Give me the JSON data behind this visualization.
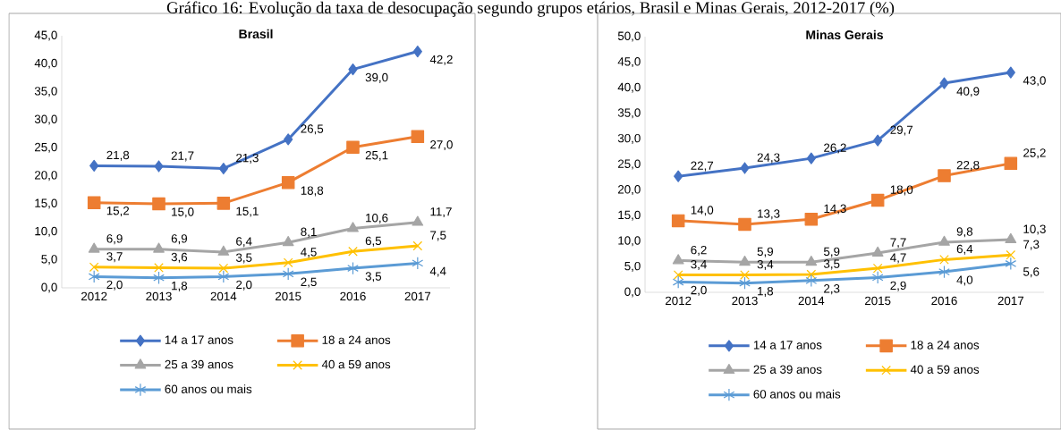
{
  "chart_data": [
    {
      "type": "line",
      "title": "Brasil",
      "annotations": [
        "Gráfico 16: Evolução da taxa de desocupação segundo grupos etários, Brasil e Minas Gerais, 2012-2017 (%)"
      ],
      "categories": [
        "2012",
        "2013",
        "2014",
        "2015",
        "2016",
        "2017"
      ],
      "ylim": [
        0,
        45
      ],
      "yticks": [
        {
          "value": 0,
          "label": "0,0"
        },
        {
          "value": 5,
          "label": "5,0"
        },
        {
          "value": 10,
          "label": "10,0"
        },
        {
          "value": 15,
          "label": "15,0"
        },
        {
          "value": 20,
          "label": "20,0"
        },
        {
          "value": 25,
          "label": "25,0"
        },
        {
          "value": 30,
          "label": "30,0"
        },
        {
          "value": 35,
          "label": "35,0"
        },
        {
          "value": 40,
          "label": "40,0"
        },
        {
          "value": 45,
          "label": "45,0"
        }
      ],
      "grid": false,
      "legend": "bottom",
      "line_style": "solid",
      "series": [
        {
          "name": "14 a 17 anos",
          "color": "#4472c4",
          "marker": "diamond",
          "values": [
            21.8,
            21.7,
            21.3,
            26.5,
            39.0,
            42.2
          ],
          "value_labels": [
            "21,8",
            "21,7",
            "21,3",
            "26,5",
            "39,0",
            "42,2"
          ]
        },
        {
          "name": "18 a 24 anos",
          "color": "#ed7d31",
          "marker": "square",
          "values": [
            15.2,
            15.0,
            15.1,
            18.8,
            25.1,
            27.0
          ],
          "value_labels": [
            "15,2",
            "15,0",
            "15,1",
            "18,8",
            "25,1",
            "27,0"
          ]
        },
        {
          "name": "25 a 39 anos",
          "color": "#a5a5a5",
          "marker": "triangle",
          "values": [
            6.9,
            6.9,
            6.4,
            8.1,
            10.6,
            11.7
          ],
          "value_labels": [
            "6,9",
            "6,9",
            "6,4",
            "8,1",
            "10,6",
            "11,7"
          ]
        },
        {
          "name": "40 a 59 anos",
          "color": "#ffc000",
          "marker": "cross",
          "values": [
            3.7,
            3.6,
            3.5,
            4.5,
            6.5,
            7.5
          ],
          "value_labels": [
            "3,7",
            "3,6",
            "3,5",
            "4,5",
            "6,5",
            "7,5"
          ]
        },
        {
          "name": "60 anos ou mais",
          "color": "#5b9bd5",
          "marker": "cross",
          "values": [
            2.0,
            1.8,
            2.0,
            2.5,
            3.5,
            4.4
          ],
          "value_labels": [
            "2,0",
            "1,8",
            "2,0",
            "2,5",
            "3,5",
            "4,4"
          ]
        }
      ]
    },
    {
      "type": "line",
      "title": "Minas Gerais",
      "categories": [
        "2012",
        "2013",
        "2014",
        "2015",
        "2016",
        "2017"
      ],
      "ylim": [
        0,
        50
      ],
      "yticks": [
        {
          "value": 0,
          "label": "0,0"
        },
        {
          "value": 5,
          "label": "5,0"
        },
        {
          "value": 10,
          "label": "10,0"
        },
        {
          "value": 15,
          "label": "15,0"
        },
        {
          "value": 20,
          "label": "20,0"
        },
        {
          "value": 25,
          "label": "25,0"
        },
        {
          "value": 30,
          "label": "30,0"
        },
        {
          "value": 35,
          "label": "35,0"
        },
        {
          "value": 40,
          "label": "40,0"
        },
        {
          "value": 45,
          "label": "45,0"
        },
        {
          "value": 50,
          "label": "50,0"
        }
      ],
      "grid": false,
      "legend": "bottom",
      "line_style": "solid",
      "series": [
        {
          "name": "14 a 17 anos",
          "color": "#4472c4",
          "marker": "diamond",
          "values": [
            22.7,
            24.3,
            26.2,
            29.7,
            40.9,
            43.0
          ],
          "value_labels": [
            "22,7",
            "24,3",
            "26,2",
            "29,7",
            "40,9",
            "43,0"
          ]
        },
        {
          "name": "18 a 24 anos",
          "color": "#ed7d31",
          "marker": "square",
          "values": [
            14.0,
            13.3,
            14.3,
            18.0,
            22.8,
            25.2
          ],
          "value_labels": [
            "14,0",
            "13,3",
            "14,3",
            "18,0",
            "22,8",
            "25,2"
          ]
        },
        {
          "name": "25 a 39 anos",
          "color": "#a5a5a5",
          "marker": "triangle",
          "values": [
            6.2,
            5.9,
            5.9,
            7.7,
            9.8,
            10.3
          ],
          "value_labels": [
            "6,2",
            "5,9",
            "5,9",
            "7,7",
            "9,8",
            "10,3"
          ]
        },
        {
          "name": "40 a 59 anos",
          "color": "#ffc000",
          "marker": "cross",
          "values": [
            3.4,
            3.4,
            3.5,
            4.7,
            6.4,
            7.3
          ],
          "value_labels": [
            "3,4",
            "3,4",
            "3,5",
            "4,7",
            "6,4",
            "7,3"
          ]
        },
        {
          "name": "60 anos ou mais",
          "color": "#5b9bd5",
          "marker": "cross",
          "values": [
            2.0,
            1.8,
            2.3,
            2.9,
            4.0,
            5.6
          ],
          "value_labels": [
            "2,0",
            "1,8",
            "2,3",
            "2,9",
            "4,0",
            "5,6"
          ]
        }
      ]
    }
  ]
}
